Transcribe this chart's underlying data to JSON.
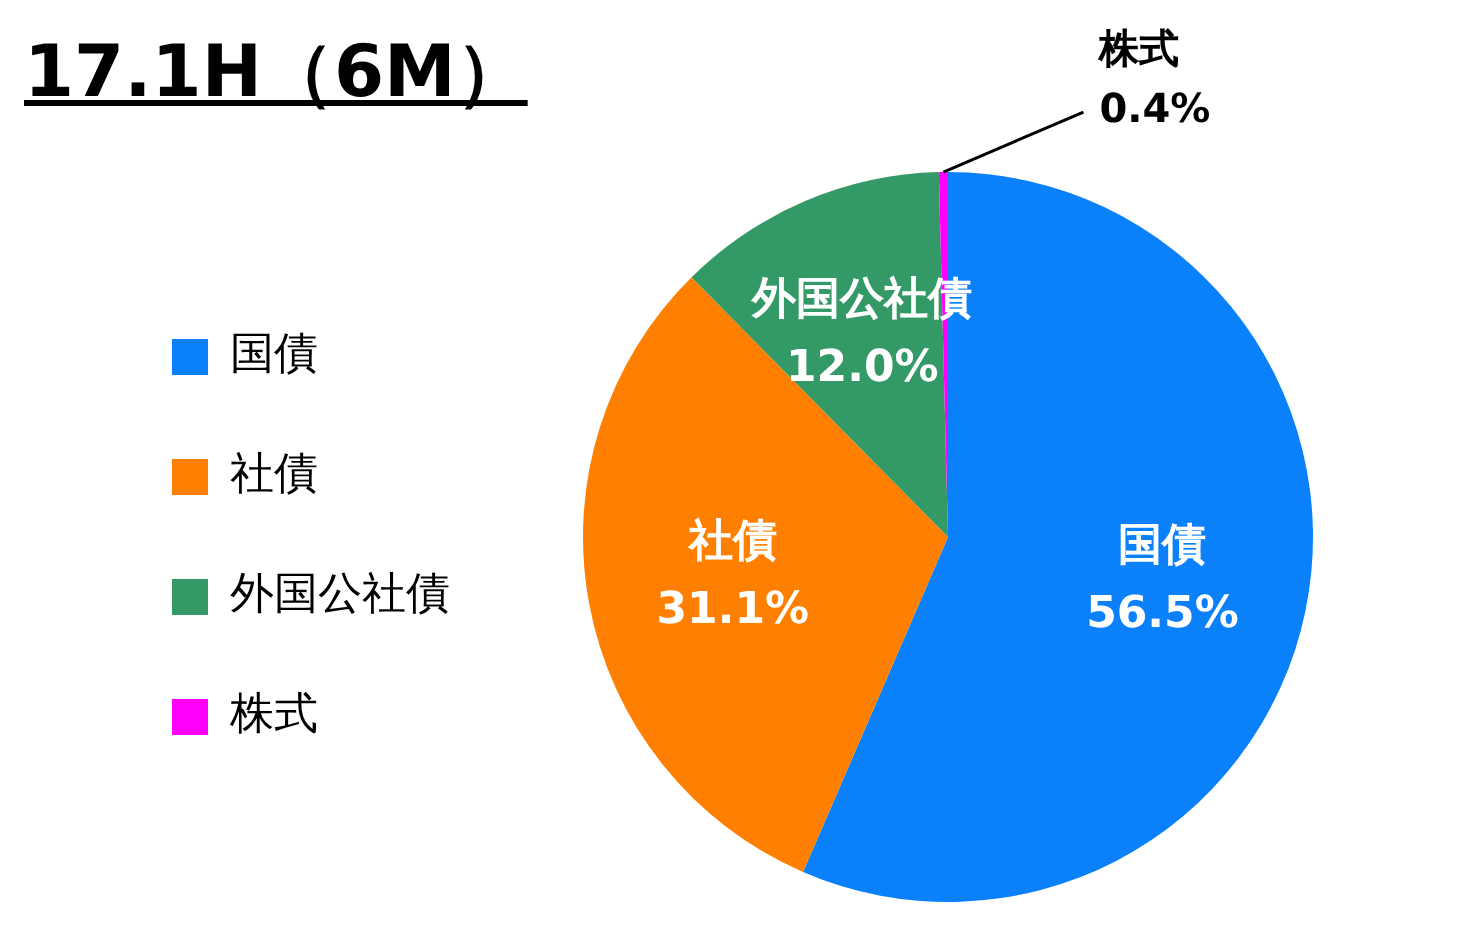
{
  "chart_data": {
    "type": "pie",
    "title": "17.1H（6M）",
    "categories": [
      "国債",
      "社債",
      "外国公社債",
      "株式"
    ],
    "values": [
      56.5,
      31.1,
      12.0,
      0.4
    ],
    "value_labels": [
      "56.5%",
      "31.1%",
      "12.0%",
      "0.4%"
    ],
    "colors": [
      "#0a80fa",
      "#ff8000",
      "#339966",
      "#ff00ff"
    ],
    "legend": "left"
  }
}
